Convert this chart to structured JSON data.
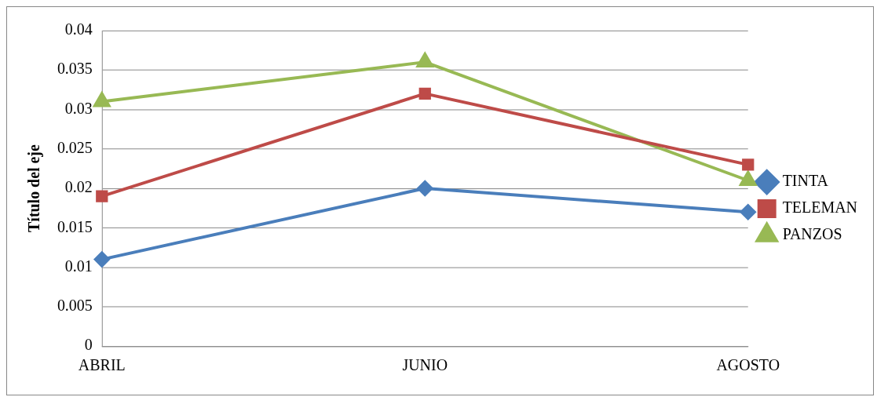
{
  "chart_data": {
    "type": "line",
    "ylabel": "Título del eje",
    "categories": [
      "ABRIL",
      "JUNIO",
      "AGOSTO"
    ],
    "series": [
      {
        "name": "TINTA",
        "color": "#4a7ebb",
        "marker": "diamond",
        "values": [
          0.011,
          0.02,
          0.017
        ]
      },
      {
        "name": "TELEMAN",
        "color": "#be4b48",
        "marker": "square",
        "values": [
          0.019,
          0.032,
          0.023
        ]
      },
      {
        "name": "PANZOS",
        "color": "#98b954",
        "marker": "triangle",
        "values": [
          0.031,
          0.036,
          0.021
        ]
      }
    ],
    "ylim": [
      0,
      0.04
    ],
    "yticks": [
      0,
      0.005,
      0.01,
      0.015,
      0.02,
      0.025,
      0.03,
      0.035,
      0.04
    ],
    "grid": "y",
    "legend": "right"
  }
}
